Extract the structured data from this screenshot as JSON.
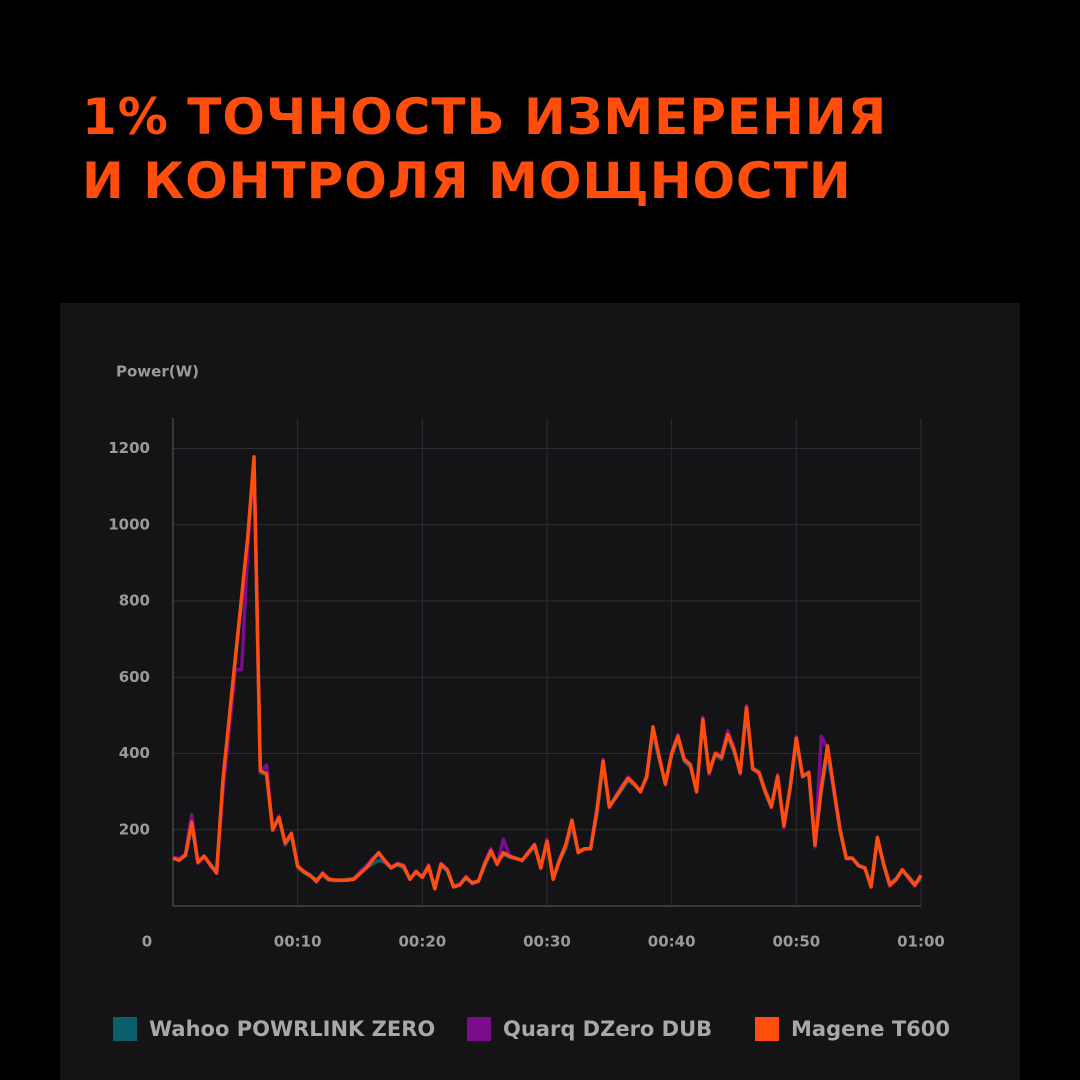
{
  "chart_data": {
    "type": "line",
    "title": [
      "1% ТОЧНОСТЬ ИЗМЕРЕНИЯ",
      "И КОНТРОЛЯ МОЩНОСТИ"
    ],
    "y_label": "Power(W)",
    "x": [
      0,
      0.5,
      1,
      1.5,
      2,
      2.5,
      3,
      3.5,
      4,
      4.5,
      5,
      5.5,
      6,
      6.5,
      7,
      7.5,
      8,
      8.5,
      9,
      9.5,
      10,
      10.5,
      11,
      11.5,
      12,
      12.5,
      13,
      13.5,
      14,
      14.5,
      15,
      15.5,
      16,
      16.5,
      17,
      17.5,
      18,
      18.5,
      19,
      19.5,
      20,
      20.5,
      21,
      21.5,
      22,
      22.5,
      23,
      23.5,
      24,
      24.5,
      25,
      25.5,
      26,
      26.5,
      27,
      27.5,
      28,
      28.5,
      29,
      29.5,
      30,
      30.5,
      31,
      31.5,
      32,
      32.5,
      33,
      33.5,
      34,
      34.5,
      35,
      35.5,
      36,
      36.5,
      37,
      37.5,
      38,
      38.5,
      39,
      39.5,
      40,
      40.5,
      41,
      41.5,
      42,
      42.5,
      43,
      43.5,
      44,
      44.5,
      45,
      45.5,
      46,
      46.5,
      47,
      47.5,
      48,
      48.5,
      49,
      49.5,
      50,
      50.5,
      51,
      51.5,
      52,
      52.5,
      53,
      53.5,
      54,
      54.5,
      55,
      55.5,
      56,
      56.5,
      57,
      57.5,
      58,
      58.5,
      59,
      59.5,
      60
    ],
    "series": [
      {
        "name": "Wahoo POWRLINK ZERO",
        "color": "#0b5e6c",
        "values": [
          124,
          122,
          132,
          210,
          118,
          128,
          110,
          90,
          320,
          480,
          640,
          800,
          960,
          1160,
          350,
          345,
          205,
          230,
          160,
          185,
          100,
          88,
          78,
          70,
          80,
          68,
          66,
          68,
          70,
          72,
          88,
          100,
          110,
          120,
          115,
          100,
          108,
          100,
          72,
          88,
          78,
          100,
          50,
          105,
          92,
          52,
          58,
          72,
          62,
          66,
          105,
          140,
          115,
          135,
          128,
          124,
          120,
          138,
          155,
          105,
          165,
          75,
          118,
          150,
          210,
          145,
          150,
          152,
          240,
          370,
          265,
          282,
          305,
          330,
          318,
          302,
          335,
          455,
          385,
          325,
          395,
          440,
          380,
          365,
          305,
          480,
          355,
          395,
          385,
          445,
          405,
          355,
          510,
          362,
          352,
          305,
          265,
          335,
          215,
          305,
          430,
          345,
          345,
          170,
          300,
          400,
          305,
          205,
          128,
          126,
          108,
          100,
          55,
          170,
          112,
          58,
          72,
          92,
          78,
          58,
          70
        ]
      },
      {
        "name": "Quarq DZero DUB",
        "color": "#7b0c8e",
        "values": [
          128,
          125,
          136,
          240,
          112,
          130,
          106,
          85,
          300,
          460,
          620,
          620,
          940,
          1170,
          352,
          370,
          198,
          236,
          162,
          192,
          102,
          92,
          82,
          62,
          88,
          72,
          68,
          66,
          68,
          72,
          90,
          105,
          125,
          135,
          120,
          102,
          112,
          108,
          70,
          92,
          76,
          108,
          48,
          112,
          96,
          50,
          56,
          78,
          58,
          64,
          115,
          150,
          108,
          175,
          132,
          126,
          118,
          142,
          162,
          98,
          175,
          72,
          124,
          158,
          220,
          142,
          148,
          152,
          255,
          385,
          258,
          288,
          315,
          338,
          322,
          298,
          342,
          465,
          392,
          318,
          402,
          450,
          388,
          372,
          298,
          495,
          345,
          402,
          395,
          460,
          415,
          345,
          525,
          358,
          348,
          298,
          258,
          345,
          205,
          312,
          445,
          338,
          352,
          155,
          445,
          415,
          300,
          198,
          124,
          124,
          106,
          98,
          52,
          178,
          108,
          52,
          68,
          96,
          72,
          52,
          82
        ]
      },
      {
        "name": "Magene T600",
        "color": "#ff4d0d",
        "values": [
          126,
          120,
          134,
          220,
          115,
          131,
          108,
          87,
          330,
          490,
          650,
          810,
          970,
          1178,
          355,
          347,
          200,
          232,
          165,
          190,
          105,
          90,
          80,
          65,
          85,
          70,
          68,
          68,
          68,
          70,
          85,
          100,
          120,
          140,
          118,
          100,
          110,
          105,
          70,
          90,
          75,
          105,
          45,
          110,
          95,
          50,
          55,
          75,
          60,
          65,
          110,
          145,
          110,
          140,
          130,
          125,
          120,
          140,
          160,
          100,
          170,
          70,
          120,
          160,
          225,
          140,
          150,
          150,
          250,
          380,
          260,
          285,
          310,
          335,
          320,
          300,
          340,
          470,
          390,
          320,
          400,
          445,
          385,
          370,
          300,
          490,
          350,
          400,
          390,
          450,
          410,
          350,
          520,
          360,
          350,
          300,
          260,
          340,
          210,
          310,
          440,
          340,
          350,
          160,
          310,
          420,
          310,
          200,
          125,
          125,
          105,
          100,
          50,
          180,
          110,
          55,
          70,
          95,
          75,
          55,
          80
        ]
      }
    ],
    "xlim": [
      0,
      60
    ],
    "xticks": [
      {
        "value": 0,
        "label": "0"
      },
      {
        "value": 10,
        "label": "00:10"
      },
      {
        "value": 20,
        "label": "00:20"
      },
      {
        "value": 30,
        "label": "00:30"
      },
      {
        "value": 40,
        "label": "00:40"
      },
      {
        "value": 50,
        "label": "00:50"
      },
      {
        "value": 60,
        "label": "01:00"
      }
    ],
    "ylim": [
      0,
      1280
    ],
    "yticks": [
      200,
      400,
      600,
      800,
      1000,
      1200
    ],
    "grid": true,
    "legend": "bottom"
  }
}
